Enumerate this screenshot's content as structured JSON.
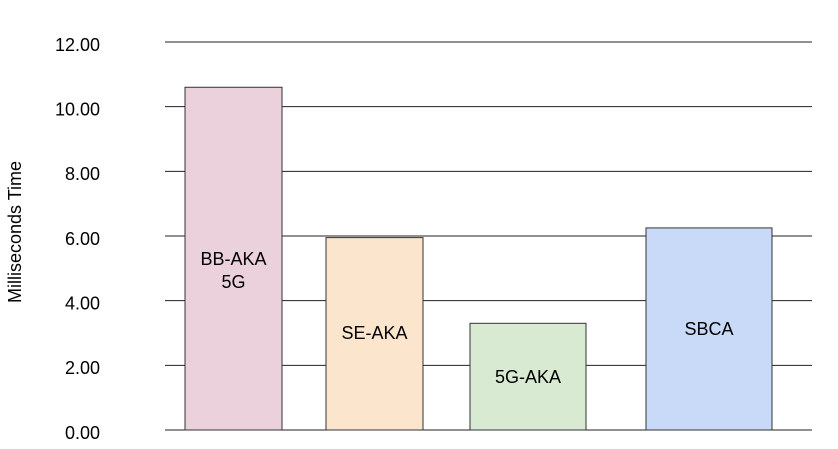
{
  "chart_data": {
    "type": "bar",
    "y_label": "Milliseconds Time",
    "categories": [
      "BB-AKA 5G",
      "SE-AKA",
      "5G-AKA",
      "SBCA"
    ],
    "values": [
      10.6,
      5.95,
      3.3,
      6.25
    ],
    "colors": [
      "#ead1dc",
      "#fce5cd",
      "#d9ead3",
      "#c9daf8"
    ],
    "ylim": [
      0,
      12
    ],
    "yticks": [
      {
        "value": 0,
        "label": "0.00"
      },
      {
        "value": 2,
        "label": "2.00"
      },
      {
        "value": 4,
        "label": "4.00"
      },
      {
        "value": 6,
        "label": "6.00"
      },
      {
        "value": 8,
        "label": "8.00"
      },
      {
        "value": 10,
        "label": "10.00"
      },
      {
        "value": 12,
        "label": "12.00"
      }
    ],
    "grid": true
  }
}
